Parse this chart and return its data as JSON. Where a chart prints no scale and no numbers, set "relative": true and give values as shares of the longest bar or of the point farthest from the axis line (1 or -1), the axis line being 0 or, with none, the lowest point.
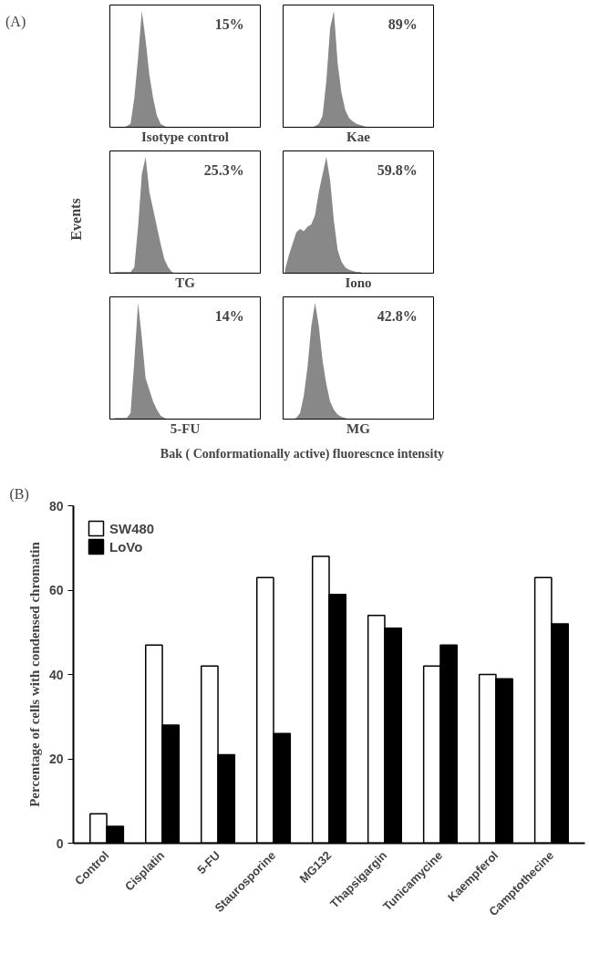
{
  "chart_data": [
    {
      "type": "other",
      "title": "(A)",
      "ylabel": "Events",
      "xlabel": "Bak ( Conformationally  active)  fluorescnce intensity"
    },
    {
      "type": "area",
      "relative": true,
      "xlabel": "Isotype control",
      "annotations": [
        "15%"
      ],
      "color": "#888888",
      "categories": [
        null,
        null,
        null,
        null,
        null,
        null,
        null,
        null,
        null,
        null,
        null,
        null,
        null,
        null,
        null,
        null,
        null,
        null,
        null,
        null,
        null,
        null,
        null,
        null,
        null,
        null,
        null,
        null,
        null,
        null,
        null,
        null,
        null,
        null,
        null,
        null,
        null,
        null,
        null,
        null
      ],
      "values": [
        0,
        0,
        0,
        0,
        0.01,
        0.03,
        0.25,
        0.6,
        1,
        0.75,
        0.45,
        0.25,
        0.1,
        0.03,
        0.01,
        0,
        0,
        0,
        0,
        0,
        0,
        0,
        0,
        0,
        0,
        0,
        0,
        0,
        0,
        0,
        0,
        0,
        0,
        0,
        0,
        0,
        0,
        0,
        0,
        0
      ]
    },
    {
      "type": "area",
      "relative": true,
      "xlabel": "Kae",
      "annotations": [
        "89%"
      ],
      "color": "#888888",
      "categories": [
        null,
        null,
        null,
        null,
        null,
        null,
        null,
        null,
        null,
        null,
        null,
        null,
        null,
        null,
        null,
        null,
        null,
        null,
        null,
        null,
        null,
        null,
        null,
        null,
        null,
        null,
        null,
        null,
        null,
        null,
        null,
        null,
        null,
        null,
        null,
        null,
        null,
        null,
        null,
        null
      ],
      "values": [
        0,
        0,
        0,
        0,
        0,
        0,
        0,
        0,
        0.01,
        0.03,
        0.1,
        0.4,
        0.85,
        1,
        0.55,
        0.3,
        0.15,
        0.08,
        0.05,
        0.03,
        0.02,
        0.01,
        0,
        0,
        0,
        0,
        0,
        0,
        0,
        0,
        0,
        0,
        0,
        0,
        0,
        0,
        0,
        0,
        0,
        0
      ]
    },
    {
      "type": "area",
      "relative": true,
      "xlabel": "TG",
      "annotations": [
        "25.3%"
      ],
      "color": "#888888",
      "categories": [
        null,
        null,
        null,
        null,
        null,
        null,
        null,
        null,
        null,
        null,
        null,
        null,
        null,
        null,
        null,
        null,
        null,
        null,
        null,
        null,
        null,
        null,
        null,
        null,
        null,
        null,
        null,
        null,
        null,
        null,
        null,
        null,
        null,
        null,
        null,
        null,
        null,
        null,
        null,
        null
      ],
      "values": [
        0,
        0.01,
        0.01,
        0.01,
        0.01,
        0.01,
        0.05,
        0.4,
        0.85,
        1,
        0.7,
        0.55,
        0.4,
        0.25,
        0.12,
        0.05,
        0.01,
        0,
        0,
        0,
        0,
        0,
        0,
        0,
        0,
        0,
        0,
        0,
        0,
        0,
        0,
        0,
        0,
        0,
        0,
        0,
        0,
        0,
        0,
        0
      ]
    },
    {
      "type": "area",
      "relative": true,
      "xlabel": "Iono",
      "annotations": [
        "59.8%"
      ],
      "color": "#888888",
      "categories": [
        null,
        null,
        null,
        null,
        null,
        null,
        null,
        null,
        null,
        null,
        null,
        null,
        null,
        null,
        null,
        null,
        null,
        null,
        null,
        null,
        null,
        null,
        null,
        null,
        null,
        null,
        null,
        null,
        null,
        null,
        null,
        null,
        null,
        null,
        null,
        null,
        null,
        null,
        null,
        null
      ],
      "values": [
        0.03,
        0.15,
        0.25,
        0.35,
        0.38,
        0.36,
        0.4,
        0.42,
        0.5,
        0.7,
        0.85,
        1,
        0.8,
        0.45,
        0.2,
        0.1,
        0.05,
        0.03,
        0.02,
        0.01,
        0.01,
        0,
        0,
        0,
        0,
        0,
        0,
        0,
        0,
        0,
        0,
        0,
        0,
        0,
        0,
        0,
        0,
        0,
        0,
        0
      ]
    },
    {
      "type": "area",
      "relative": true,
      "xlabel": "5-FU",
      "annotations": [
        "14%"
      ],
      "color": "#888888",
      "categories": [
        null,
        null,
        null,
        null,
        null,
        null,
        null,
        null,
        null,
        null,
        null,
        null,
        null,
        null,
        null,
        null,
        null,
        null,
        null,
        null,
        null,
        null,
        null,
        null,
        null,
        null,
        null,
        null,
        null,
        null,
        null,
        null,
        null,
        null,
        null,
        null,
        null,
        null,
        null,
        null
      ],
      "values": [
        0,
        0.01,
        0.01,
        0.01,
        0.01,
        0.05,
        0.5,
        1,
        0.7,
        0.35,
        0.25,
        0.15,
        0.08,
        0.03,
        0.01,
        0,
        0,
        0,
        0,
        0,
        0,
        0,
        0,
        0,
        0,
        0,
        0,
        0,
        0,
        0,
        0,
        0,
        0,
        0,
        0,
        0,
        0,
        0,
        0,
        0
      ]
    },
    {
      "type": "area",
      "relative": true,
      "xlabel": "MG",
      "annotations": [
        "42.8%"
      ],
      "color": "#888888",
      "categories": [
        null,
        null,
        null,
        null,
        null,
        null,
        null,
        null,
        null,
        null,
        null,
        null,
        null,
        null,
        null,
        null,
        null,
        null,
        null,
        null,
        null,
        null,
        null,
        null,
        null,
        null,
        null,
        null,
        null,
        null,
        null,
        null,
        null,
        null,
        null,
        null,
        null,
        null,
        null,
        null
      ],
      "values": [
        0,
        0,
        0,
        0.01,
        0.05,
        0.2,
        0.45,
        0.8,
        1,
        0.8,
        0.5,
        0.3,
        0.15,
        0.08,
        0.04,
        0.02,
        0.01,
        0,
        0,
        0,
        0,
        0,
        0,
        0,
        0,
        0,
        0,
        0,
        0,
        0,
        0,
        0,
        0,
        0,
        0,
        0,
        0,
        0,
        0,
        0
      ]
    },
    {
      "type": "bar",
      "annotations": [
        "(B)"
      ],
      "ylabel": "Percentage of cells with condensed chromatin",
      "categories": [
        "Control",
        "Cisplatin",
        "5-FU",
        "Staurosporine",
        "MG132",
        "Thapsigargin",
        "Tunicamycine",
        "Kaempferol",
        "Camptothecine"
      ],
      "ylim": [
        0,
        80
      ],
      "yticks": [
        0,
        20,
        40,
        60,
        80
      ],
      "grid": false,
      "legend": "top left",
      "series": [
        {
          "name": "SW480",
          "color": "#ffffff",
          "values": [
            7,
            47,
            42,
            63,
            68,
            54,
            42,
            40,
            63
          ]
        },
        {
          "name": "LoVo",
          "color": "#000000",
          "values": [
            4,
            28,
            21,
            26,
            59,
            51,
            47,
            39,
            52
          ]
        }
      ]
    }
  ]
}
